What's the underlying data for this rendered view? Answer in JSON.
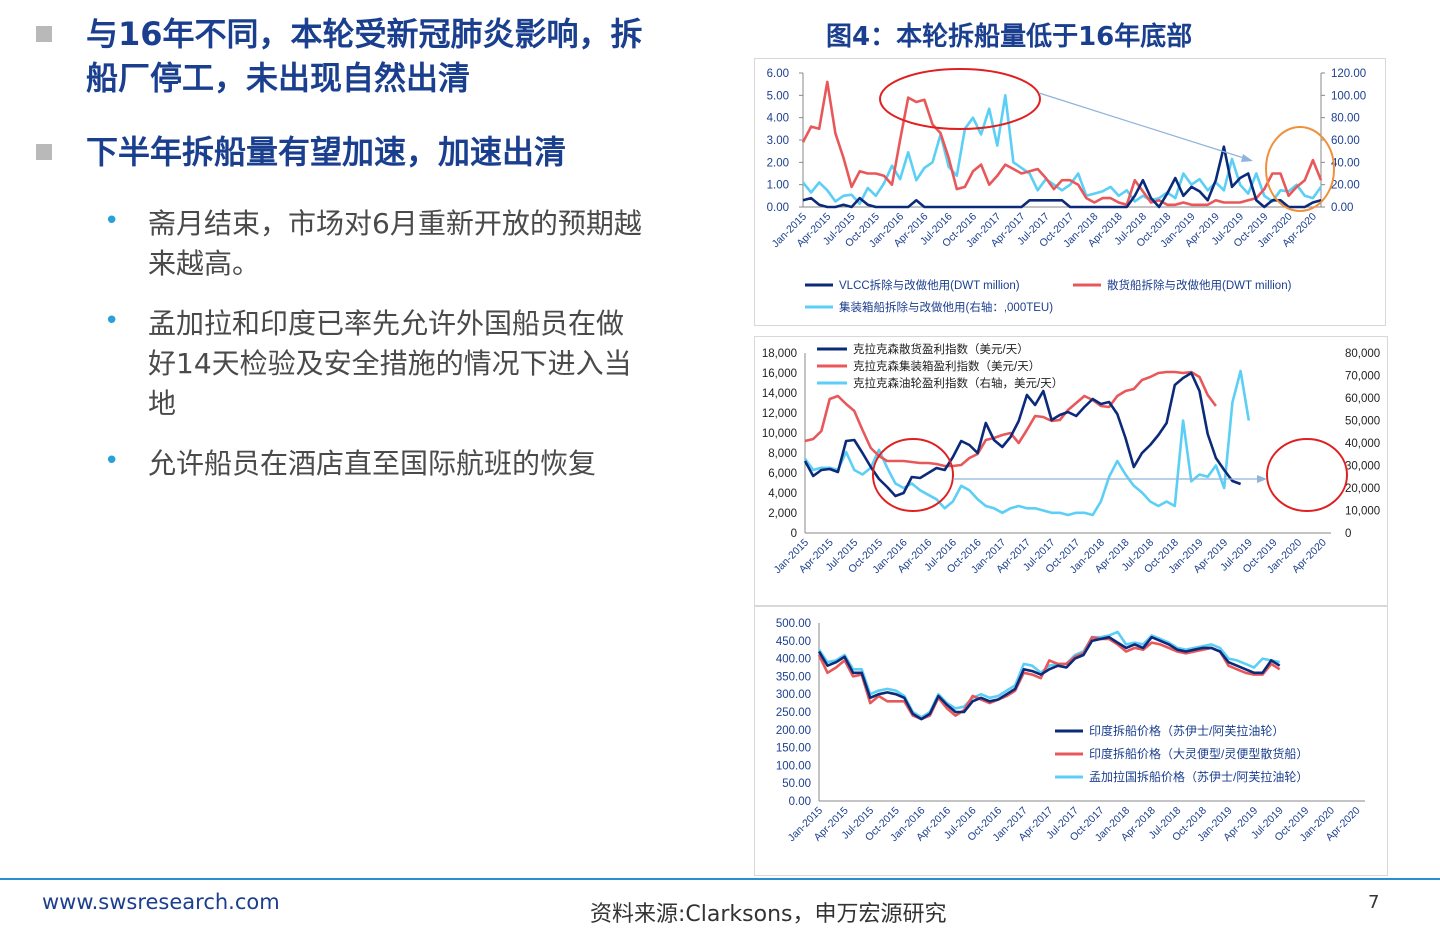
{
  "left": {
    "heading1": [
      "与16年不同，本轮受新冠肺炎影响，拆",
      "船厂停工，未出现自然出清"
    ],
    "heading2": "下半年拆船量有望加速，加速出清",
    "points": [
      [
        "斋月结束，市场对6月重新开放的预期越",
        "来越高。"
      ],
      [
        "孟加拉和印度已率先允许外国船员在做",
        "好14天检验及安全措施的情况下进入当",
        "地"
      ],
      [
        "允许船员在酒店直至国际航班的恢复"
      ]
    ]
  },
  "figure_title": "图4：本轮拆船量低于16年底部",
  "footer": {
    "website": "www.swsresearch.com",
    "source": "资料来源:Clarksons，申万宏源研究",
    "page": "7"
  },
  "colors": {
    "navy": "#0b2a7a",
    "red": "#e8585a",
    "cyan": "#5bcff5",
    "arrow": "#8fb4dc",
    "orange": "#f0903a",
    "circle_red": "#e02020"
  },
  "x_ticks": [
    "Jan-2015",
    "Apr-2015",
    "Jul-2015",
    "Oct-2015",
    "Jan-2016",
    "Apr-2016",
    "Jul-2016",
    "Oct-2016",
    "Jan-2017",
    "Apr-2017",
    "Jul-2017",
    "Oct-2017",
    "Jan-2018",
    "Apr-2018",
    "Jul-2018",
    "Oct-2018",
    "Jan-2019",
    "Apr-2019",
    "Jul-2019",
    "Oct-2019",
    "Jan-2020",
    "Apr-2020"
  ],
  "chart_data": [
    {
      "type": "line",
      "x_start": "Jan-2015",
      "x_end": "May-2020",
      "frequency": "monthly",
      "y_left_ticks": [
        "6.00",
        "5.00",
        "4.00",
        "3.00",
        "2.00",
        "1.00",
        "0.00"
      ],
      "y_right_ticks": [
        "120.00",
        "100.00",
        "80.00",
        "60.00",
        "40.00",
        "20.00",
        "0.00"
      ],
      "ylim_left": [
        0,
        6
      ],
      "ylim_right": [
        0,
        120
      ],
      "legend": [
        "VLCC拆除与改做他用(DWT million)",
        "散货船拆除与改做他用(DWT million)",
        "集装箱船拆除与改做他用(右轴：,000TEU)"
      ],
      "series": [
        {
          "name": "VLCC拆除与改做他用(DWT million)",
          "axis": "left",
          "values": [
            0.3,
            0.4,
            0.1,
            0.0,
            0.0,
            0.1,
            0.0,
            0.4,
            0.1,
            0.0,
            0.0,
            0.0,
            0.0,
            0.0,
            0.3,
            0.0,
            0.0,
            0.0,
            0.0,
            0.0,
            0.0,
            0.0,
            0.0,
            0.0,
            0.0,
            0.0,
            0.0,
            0.0,
            0.3,
            0.3,
            0.3,
            0.3,
            0.3,
            0.0,
            0.0,
            0.0,
            0.0,
            0.0,
            0.0,
            0.0,
            0.0,
            0.5,
            1.2,
            0.4,
            0.0,
            0.6,
            1.3,
            0.5,
            0.9,
            0.7,
            0.3,
            1.2,
            2.7,
            0.9,
            1.3,
            1.5,
            0.3,
            0.0,
            0.3,
            0.3,
            0.0,
            0.0,
            0.0,
            0.2,
            0.3
          ]
        },
        {
          "name": "散货船拆除与改做他用(DWT million)",
          "axis": "left",
          "values": [
            2.9,
            3.6,
            3.5,
            5.6,
            3.3,
            2.2,
            0.9,
            1.6,
            1.5,
            1.5,
            1.4,
            1.0,
            3.0,
            4.9,
            4.7,
            4.8,
            3.7,
            3.3,
            2.2,
            0.8,
            0.9,
            1.6,
            1.9,
            1.0,
            1.4,
            1.9,
            1.7,
            1.5,
            1.6,
            1.7,
            1.3,
            0.8,
            1.2,
            1.2,
            1.0,
            0.4,
            0.2,
            0.4,
            0.4,
            0.2,
            0.1,
            1.2,
            0.7,
            0.2,
            0.3,
            0.1,
            0.1,
            0.2,
            0.1,
            0.1,
            0.1,
            0.3,
            0.2,
            0.2,
            0.2,
            0.3,
            0.4,
            0.8,
            1.5,
            1.5,
            0.5,
            0.9,
            1.2,
            2.1,
            1.2
          ]
        },
        {
          "name": "集装箱船拆除与改做他用(右轴：,000TEU)",
          "axis": "right",
          "values": [
            22,
            13,
            22,
            15,
            5,
            10,
            11,
            3,
            17,
            10,
            21,
            37,
            25,
            49,
            24,
            35,
            40,
            65,
            36,
            28,
            70,
            80,
            65,
            88,
            55,
            100,
            40,
            35,
            30,
            15,
            25,
            20,
            15,
            20,
            30,
            10,
            12,
            14,
            18,
            10,
            15,
            5,
            10,
            6,
            8,
            13,
            8,
            30,
            20,
            25,
            15,
            22,
            15,
            43,
            20,
            12,
            30,
            10,
            5,
            15,
            14,
            20,
            10,
            8,
            18
          ]
        }
      ]
    },
    {
      "type": "line",
      "x_start": "Jan-2015",
      "x_end": "May-2020",
      "frequency": "monthly",
      "y_left_ticks": [
        "18,000",
        "16,000",
        "14,000",
        "12,000",
        "10,000",
        "8,000",
        "6,000",
        "4,000",
        "2,000",
        "0"
      ],
      "y_right_ticks": [
        "80,000",
        "70,000",
        "60,000",
        "50,000",
        "40,000",
        "30,000",
        "20,000",
        "10,000",
        "0"
      ],
      "ylim_left": [
        0,
        18000
      ],
      "ylim_right": [
        0,
        80000
      ],
      "legend": [
        "克拉克森散货盈利指数（美元/天）",
        "克拉克森集装箱盈利指数（美元/天）",
        "克拉克森油轮盈利指数（右轴，美元/天）"
      ],
      "series": [
        {
          "name": "克拉克森散货盈利指数（美元/天）",
          "axis": "left",
          "values": [
            7200,
            5700,
            6300,
            6400,
            6100,
            9200,
            9300,
            8000,
            6600,
            5400,
            4600,
            3700,
            4000,
            5600,
            5500,
            6000,
            6500,
            6300,
            7600,
            9200,
            8800,
            8000,
            11000,
            9300,
            8600,
            9600,
            11200,
            13800,
            12800,
            14200,
            11300,
            11800,
            12100,
            11700,
            12600,
            13400,
            12900,
            13100,
            11900,
            9500,
            6600,
            8000,
            8800,
            9800,
            11000,
            14800,
            15500,
            16000,
            14200,
            9900,
            7500,
            6300,
            5200,
            4900
          ]
        },
        {
          "name": "克拉克森集装箱盈利指数（美元/天）",
          "axis": "left",
          "values": [
            9200,
            9400,
            10200,
            13400,
            13700,
            12900,
            12200,
            10300,
            8500,
            7700,
            7200,
            7200,
            7200,
            7100,
            7000,
            7000,
            6900,
            6700,
            6700,
            6800,
            7500,
            7900,
            9300,
            9500,
            9800,
            10000,
            9000,
            10300,
            11700,
            11600,
            11200,
            11300,
            12300,
            13000,
            13700,
            13300,
            12700,
            12600,
            13700,
            14200,
            14400,
            15300,
            15600,
            16000,
            16100,
            16100,
            16000,
            16100,
            15600,
            13800,
            12700
          ]
        },
        {
          "name": "克拉克森油轮盈利指数（右轴，美元/天）",
          "axis": "right",
          "values": [
            33000,
            28000,
            29000,
            29000,
            28000,
            36000,
            28000,
            26000,
            29000,
            37000,
            29000,
            22000,
            20000,
            22000,
            19000,
            17000,
            15000,
            11000,
            14000,
            21000,
            19000,
            15000,
            12000,
            11000,
            9000,
            11000,
            12000,
            11000,
            11000,
            10000,
            9000,
            9000,
            8000,
            9000,
            9000,
            8000,
            14000,
            25000,
            32000,
            26000,
            21000,
            18000,
            14000,
            12000,
            14000,
            12000,
            50000,
            23000,
            26000,
            25000,
            30000,
            20000,
            58000,
            72000,
            50000
          ]
        }
      ]
    },
    {
      "type": "line",
      "x_start": "Jan-2015",
      "x_end": "May-2020",
      "frequency": "monthly",
      "y_ticks": [
        "500.00",
        "450.00",
        "400.00",
        "350.00",
        "300.00",
        "250.00",
        "200.00",
        "150.00",
        "100.00",
        "50.00",
        "0.00"
      ],
      "ylim": [
        0,
        500
      ],
      "legend": [
        "印度拆船价格（苏伊士/阿芙拉油轮）",
        "印度拆船价格（大灵便型/灵便型散货船）",
        "孟加拉国拆船价格（苏伊士/阿芙拉油轮）"
      ],
      "series": [
        {
          "name": "印度拆船价格（苏伊士/阿芙拉油轮）",
          "values": [
            420,
            380,
            390,
            405,
            360,
            360,
            290,
            300,
            305,
            300,
            290,
            245,
            230,
            245,
            295,
            270,
            250,
            250,
            280,
            290,
            280,
            285,
            300,
            315,
            370,
            365,
            355,
            370,
            380,
            375,
            400,
            410,
            450,
            455,
            460,
            445,
            430,
            440,
            430,
            460,
            450,
            440,
            425,
            420,
            425,
            430,
            430,
            420,
            390,
            380,
            370,
            360,
            360,
            395,
            380
          ]
        },
        {
          "name": "印度拆船价格（大灵便型/灵便型散货船）",
          "values": [
            410,
            360,
            375,
            395,
            350,
            355,
            275,
            295,
            280,
            280,
            280,
            240,
            230,
            240,
            290,
            260,
            240,
            255,
            295,
            285,
            275,
            285,
            295,
            310,
            360,
            355,
            345,
            395,
            385,
            385,
            405,
            415,
            460,
            455,
            455,
            440,
            420,
            430,
            425,
            445,
            440,
            430,
            420,
            415,
            420,
            425,
            430,
            420,
            380,
            370,
            360,
            355,
            355,
            385,
            370
          ]
        },
        {
          "name": "孟加拉国拆船价格（苏伊士/阿芙拉油轮）",
          "values": [
            425,
            390,
            395,
            410,
            370,
            370,
            300,
            310,
            315,
            310,
            295,
            250,
            235,
            250,
            300,
            275,
            260,
            265,
            290,
            300,
            290,
            295,
            310,
            325,
            385,
            380,
            360,
            380,
            385,
            385,
            410,
            420,
            460,
            460,
            465,
            475,
            440,
            445,
            440,
            465,
            455,
            445,
            430,
            425,
            430,
            435,
            440,
            430,
            400,
            395,
            385,
            375,
            400,
            395,
            390
          ]
        }
      ]
    }
  ]
}
